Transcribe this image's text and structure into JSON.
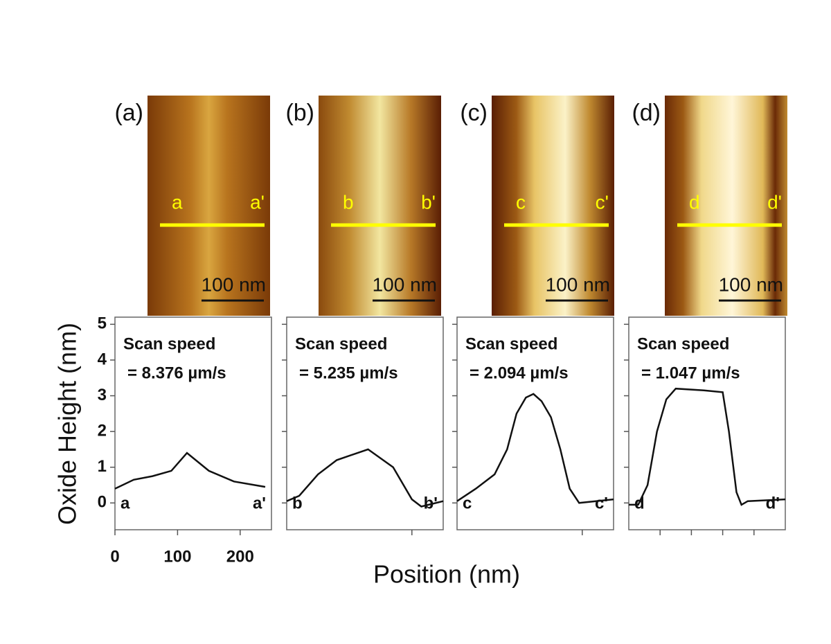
{
  "chart_data": [
    {
      "type": "line",
      "panel_label": "(a)",
      "line_labels": [
        "a",
        "a'"
      ],
      "scale_bar": "100 nm",
      "annotation": [
        "Scan speed",
        "= 8.376 µm/s"
      ],
      "ylabel": "Oxide Height (nm)",
      "xlabel": "Position (nm)",
      "x": [
        0,
        30,
        60,
        90,
        115,
        150,
        190,
        240
      ],
      "values": [
        0.4,
        0.65,
        0.75,
        0.9,
        1.4,
        0.9,
        0.6,
        0.45
      ],
      "color": "#111111",
      "xlim": [
        0,
        250
      ],
      "ylim": [
        -0.75,
        5.2
      ],
      "xticks": [
        0,
        100,
        200
      ],
      "yticks": [
        0,
        1,
        2,
        3,
        4,
        5
      ],
      "tick_labels": true
    },
    {
      "type": "line",
      "panel_label": "(b)",
      "line_labels": [
        "b",
        "b'"
      ],
      "scale_bar": "100 nm",
      "annotation": [
        "Scan speed",
        "= 5.235 µm/s"
      ],
      "x": [
        0,
        20,
        50,
        80,
        130,
        170,
        200,
        215,
        250
      ],
      "values": [
        0.05,
        0.2,
        0.8,
        1.2,
        1.5,
        1.0,
        0.1,
        -0.1,
        0.05
      ],
      "color": "#111111",
      "xlim": [
        0,
        250
      ],
      "ylim": [
        -0.75,
        5.2
      ],
      "xticks": [
        200
      ],
      "yticks": [
        0,
        1,
        2,
        3,
        4,
        5
      ],
      "tick_labels": false
    },
    {
      "type": "line",
      "panel_label": "(c)",
      "line_labels": [
        "c",
        "c'"
      ],
      "scale_bar": "100 nm",
      "annotation": [
        "Scan speed",
        "= 2.094 µm/s"
      ],
      "x": [
        0,
        30,
        60,
        80,
        95,
        110,
        122,
        135,
        150,
        165,
        180,
        195,
        250
      ],
      "values": [
        0.05,
        0.4,
        0.8,
        1.5,
        2.5,
        2.95,
        3.05,
        2.85,
        2.4,
        1.5,
        0.4,
        0.0,
        0.1
      ],
      "color": "#111111",
      "xlim": [
        0,
        250
      ],
      "ylim": [
        -0.75,
        5.2
      ],
      "xticks": [
        200
      ],
      "yticks": [
        0,
        1,
        2,
        3,
        4,
        5
      ],
      "tick_labels": false
    },
    {
      "type": "line",
      "panel_label": "(d)",
      "line_labels": [
        "d",
        "d'"
      ],
      "scale_bar": "100 nm",
      "annotation": [
        "Scan speed",
        "= 1.047 µm/s"
      ],
      "x": [
        0,
        15,
        30,
        45,
        60,
        75,
        120,
        150,
        160,
        172,
        180,
        190,
        250
      ],
      "values": [
        -0.05,
        -0.05,
        0.5,
        2.0,
        2.9,
        3.2,
        3.15,
        3.1,
        2.0,
        0.3,
        -0.05,
        0.05,
        0.1
      ],
      "color": "#111111",
      "xlim": [
        0,
        250
      ],
      "ylim": [
        -0.75,
        5.2
      ],
      "xticks": [
        50,
        100,
        150,
        200
      ],
      "yticks": [
        0,
        1,
        2,
        3,
        4,
        5
      ],
      "tick_labels": false
    }
  ]
}
